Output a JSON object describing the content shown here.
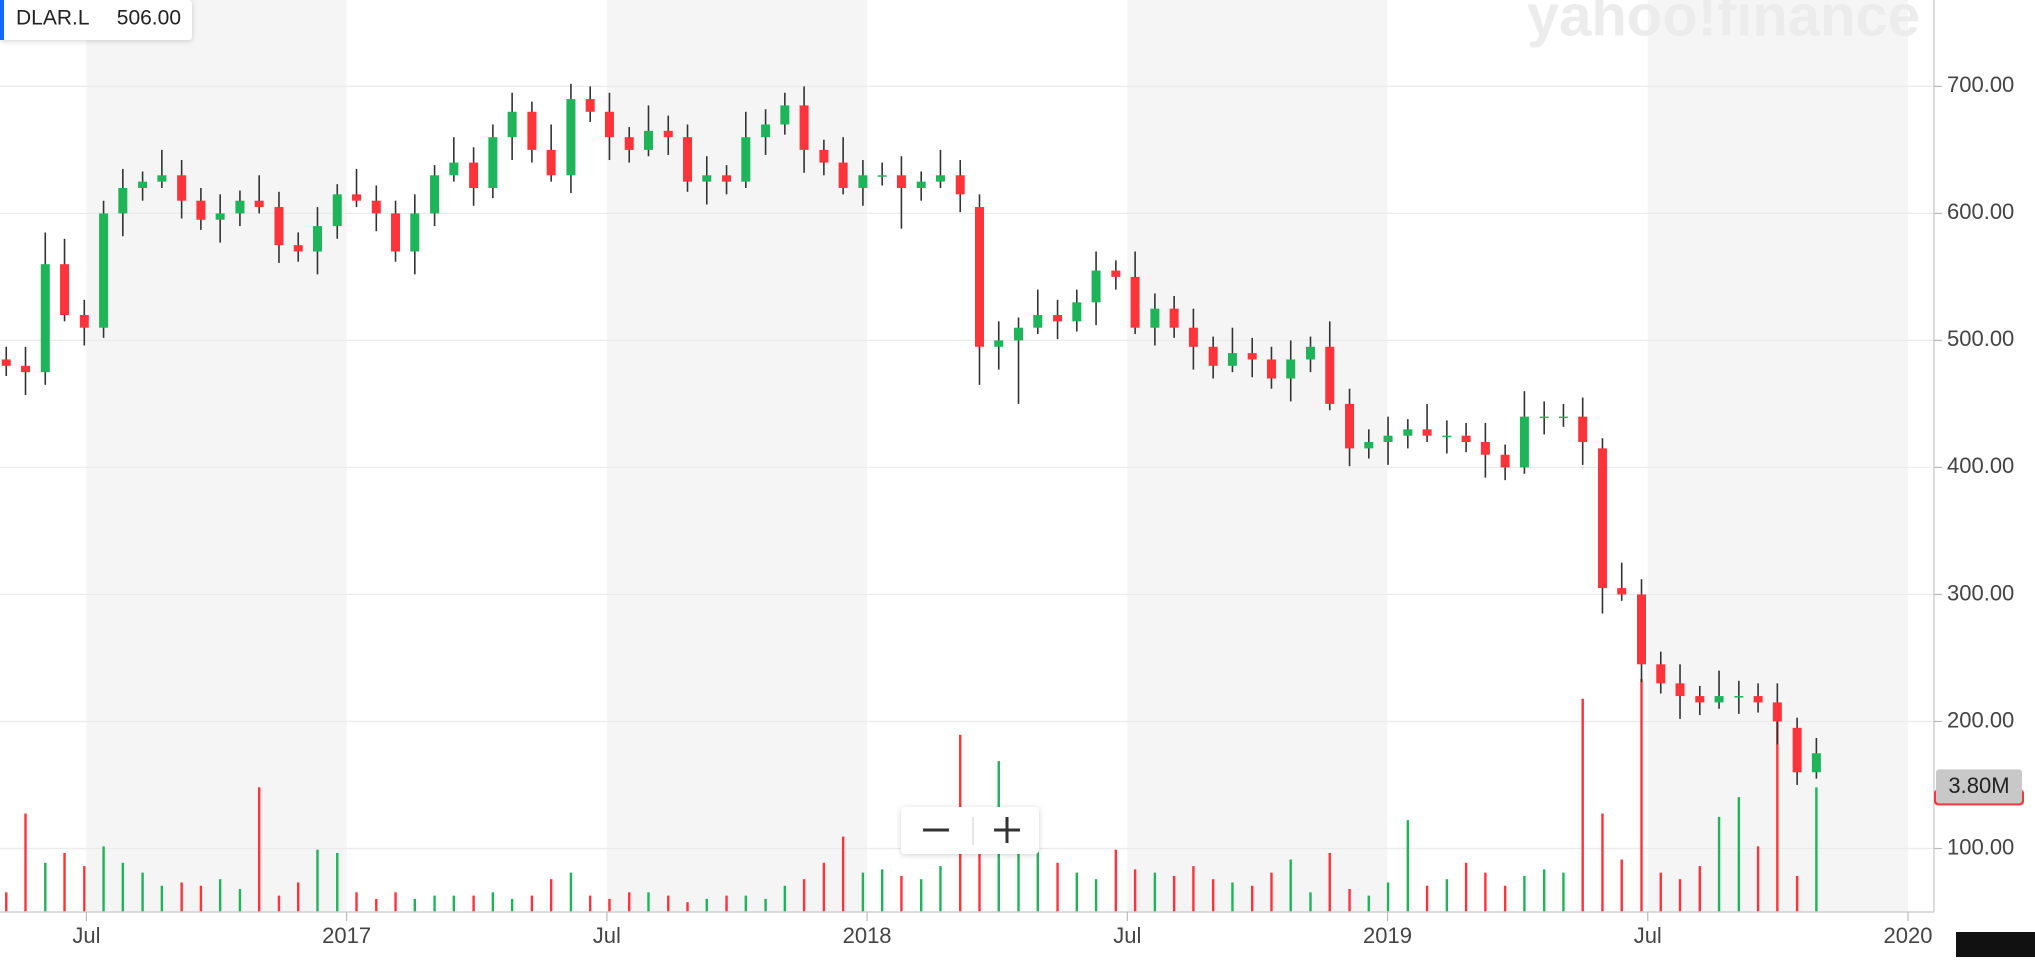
{
  "chart_data": {
    "type": "candlestick",
    "symbol": "DLAR.L",
    "readout": {
      "value": 506,
      "label": "506.00"
    },
    "watermark": "yahoo!finance",
    "up_color": "#1eb55a",
    "down_color": "#ff333a",
    "xlim": [
      2016.334,
      2020.05
    ],
    "xticks": [
      {
        "value": 2016.5,
        "label": "Jul"
      },
      {
        "value": 2017,
        "label": "2017"
      },
      {
        "value": 2017.5,
        "label": "Jul"
      },
      {
        "value": 2018,
        "label": "2018"
      },
      {
        "value": 2018.5,
        "label": "Jul"
      },
      {
        "value": 2019,
        "label": "2019"
      },
      {
        "value": 2019.5,
        "label": "Jul"
      },
      {
        "value": 2020,
        "label": "2020"
      }
    ],
    "ylim": [
      50,
      768
    ],
    "yticks": [
      {
        "value": 100,
        "label": "100.00"
      },
      {
        "value": 200,
        "label": "200.00"
      },
      {
        "value": 300,
        "label": "300.00"
      },
      {
        "value": 400,
        "label": "400.00"
      },
      {
        "value": 500,
        "label": "500.00"
      },
      {
        "value": 600,
        "label": "600.00"
      },
      {
        "value": 700,
        "label": "700.00"
      }
    ],
    "grid": true,
    "y2lim": [
      0,
      27.8
    ],
    "volume_label": {
      "value": 3.8,
      "label": "3.80M"
    },
    "x": [
      2016.346,
      2016.383,
      2016.421,
      2016.458,
      2016.496,
      2016.533,
      2016.57,
      2016.608,
      2016.645,
      2016.683,
      2016.72,
      2016.757,
      2016.795,
      2016.832,
      2016.87,
      2016.907,
      2016.944,
      2016.982,
      2017.019,
      2017.057,
      2017.094,
      2017.131,
      2017.169,
      2017.206,
      2017.244,
      2017.281,
      2017.318,
      2017.356,
      2017.393,
      2017.431,
      2017.468,
      2017.505,
      2017.543,
      2017.58,
      2017.618,
      2017.655,
      2017.692,
      2017.73,
      2017.767,
      2017.805,
      2017.842,
      2017.879,
      2017.917,
      2017.954,
      2017.992,
      2018.029,
      2018.066,
      2018.104,
      2018.141,
      2018.179,
      2018.216,
      2018.253,
      2018.291,
      2018.328,
      2018.366,
      2018.403,
      2018.44,
      2018.478,
      2018.515,
      2018.553,
      2018.59,
      2018.627,
      2018.665,
      2018.702,
      2018.74,
      2018.777,
      2018.814,
      2018.852,
      2018.889,
      2018.927,
      2018.964,
      2019.001,
      2019.039,
      2019.076,
      2019.114,
      2019.151,
      2019.188,
      2019.226,
      2019.263,
      2019.301,
      2019.338,
      2019.375,
      2019.413,
      2019.45,
      2019.488,
      2019.525,
      2019.562,
      2019.6,
      2019.637,
      2019.675,
      2019.712,
      2019.749,
      2019.787,
      2019.824
    ],
    "open": [
      485,
      480,
      475,
      560,
      520,
      510,
      600,
      620,
      625,
      630,
      610,
      595,
      600,
      610,
      605,
      575,
      570,
      590,
      615,
      610,
      600,
      570,
      600,
      630,
      640,
      620,
      660,
      680,
      650,
      630,
      690,
      680,
      660,
      650,
      665,
      660,
      625,
      630,
      625,
      660,
      670,
      685,
      650,
      640,
      620,
      630,
      630,
      620,
      625,
      630,
      605,
      495,
      500,
      510,
      520,
      515,
      530,
      555,
      550,
      510,
      525,
      510,
      495,
      480,
      490,
      485,
      470,
      485,
      495,
      450,
      415,
      420,
      425,
      430,
      425,
      425,
      420,
      410,
      400,
      440,
      440,
      440,
      415,
      305,
      300,
      245,
      230,
      220,
      215,
      220,
      220,
      215,
      195,
      160
    ],
    "high": [
      495,
      495,
      585,
      580,
      532,
      610,
      635,
      633,
      650,
      642,
      620,
      615,
      618,
      630,
      617,
      585,
      605,
      623,
      635,
      622,
      610,
      615,
      638,
      660,
      652,
      670,
      695,
      688,
      670,
      702,
      700,
      695,
      668,
      685,
      677,
      670,
      645,
      638,
      680,
      682,
      695,
      700,
      658,
      660,
      642,
      640,
      645,
      633,
      650,
      642,
      615,
      515,
      518,
      540,
      532,
      540,
      570,
      563,
      570,
      537,
      535,
      525,
      503,
      510,
      502,
      495,
      500,
      503,
      515,
      462,
      430,
      440,
      438,
      450,
      437,
      435,
      435,
      418,
      460,
      452,
      450,
      455,
      423,
      325,
      312,
      255,
      245,
      228,
      240,
      232,
      230,
      230,
      203,
      187
    ],
    "low": [
      472,
      457,
      465,
      515,
      496,
      502,
      582,
      610,
      620,
      596,
      587,
      577,
      590,
      600,
      561,
      562,
      552,
      580,
      605,
      586,
      562,
      552,
      590,
      625,
      606,
      612,
      642,
      640,
      625,
      616,
      672,
      642,
      640,
      645,
      646,
      617,
      607,
      615,
      620,
      646,
      662,
      632,
      630,
      615,
      606,
      622,
      588,
      610,
      620,
      601,
      465,
      477,
      450,
      505,
      501,
      507,
      512,
      540,
      505,
      496,
      502,
      477,
      470,
      475,
      471,
      462,
      452,
      475,
      445,
      401,
      407,
      402,
      415,
      420,
      411,
      412,
      392,
      390,
      395,
      426,
      432,
      402,
      285,
      295,
      231,
      222,
      202,
      205,
      210,
      206,
      207,
      182,
      150,
      155
    ],
    "close": [
      480,
      475,
      560,
      520,
      510,
      600,
      620,
      625,
      630,
      610,
      595,
      600,
      610,
      605,
      575,
      570,
      590,
      615,
      610,
      600,
      570,
      600,
      630,
      640,
      620,
      660,
      680,
      650,
      630,
      690,
      680,
      660,
      650,
      665,
      660,
      625,
      630,
      625,
      660,
      670,
      685,
      650,
      640,
      620,
      630,
      630,
      620,
      625,
      630,
      615,
      495,
      500,
      510,
      520,
      515,
      530,
      555,
      550,
      510,
      525,
      510,
      495,
      480,
      490,
      485,
      470,
      485,
      495,
      450,
      415,
      420,
      425,
      430,
      425,
      425,
      420,
      410,
      400,
      440,
      440,
      440,
      420,
      305,
      300,
      245,
      230,
      220,
      215,
      220,
      220,
      215,
      200,
      160,
      175
    ],
    "volume": [
      0.6,
      3.0,
      1.5,
      1.8,
      1.4,
      2.0,
      1.5,
      1.2,
      0.8,
      0.9,
      0.8,
      1.0,
      0.7,
      3.8,
      0.5,
      0.9,
      1.9,
      1.8,
      0.6,
      0.4,
      0.6,
      0.4,
      0.5,
      0.5,
      0.5,
      0.6,
      0.4,
      0.5,
      1.0,
      1.2,
      0.5,
      0.4,
      0.6,
      0.6,
      0.5,
      0.3,
      0.4,
      0.5,
      0.5,
      0.4,
      0.8,
      1.0,
      1.5,
      2.3,
      1.2,
      1.3,
      1.1,
      1.0,
      1.4,
      5.4,
      2.0,
      4.6,
      1.8,
      2.8,
      1.5,
      1.2,
      1.0,
      1.9,
      1.3,
      1.2,
      1.1,
      1.4,
      1.0,
      0.9,
      0.8,
      1.2,
      1.6,
      0.6,
      1.8,
      0.7,
      0.5,
      0.9,
      2.8,
      0.8,
      1.0,
      1.5,
      1.2,
      0.8,
      1.1,
      1.3,
      1.2,
      6.5,
      3.0,
      1.6,
      7.1,
      1.2,
      1.0,
      1.4,
      2.9,
      3.5,
      2.0,
      5.8,
      1.1,
      3.8
    ]
  }
}
